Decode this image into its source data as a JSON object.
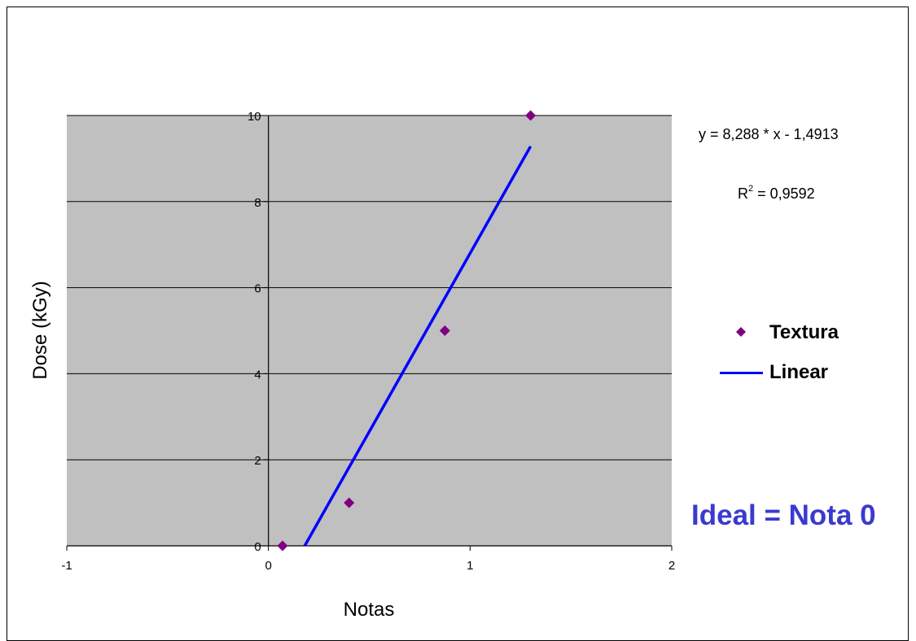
{
  "chart_data": {
    "type": "scatter",
    "title": "",
    "xlabel": "Notas",
    "ylabel": "Dose (kGy)",
    "xlim": [
      -1,
      2
    ],
    "ylim": [
      0,
      10
    ],
    "x_ticks": [
      -1,
      0,
      1,
      2
    ],
    "y_ticks": [
      0,
      2,
      4,
      6,
      8,
      10
    ],
    "grid": "horizontal",
    "plot_background": "#c0c0c0",
    "series": [
      {
        "name": "Textura",
        "marker": "diamond",
        "color": "#800080",
        "points": [
          {
            "x": 0.07,
            "y": 0
          },
          {
            "x": 0.4,
            "y": 1
          },
          {
            "x": 0.875,
            "y": 5
          },
          {
            "x": 1.3,
            "y": 10
          }
        ]
      },
      {
        "name": "Linear",
        "type": "line",
        "color": "#0000ff",
        "slope": 8.288,
        "intercept": -1.4913,
        "x_range": [
          0.18,
          1.3
        ]
      }
    ],
    "legend": {
      "position": "right",
      "entries": [
        "Textura",
        "Linear"
      ]
    },
    "annotations": {
      "equation": "y = 8,288 * x - 1,4913",
      "r2_prefix": "R",
      "r2_sup": "2",
      "r2_value": " = 0,9592",
      "ideal": "Ideal = Nota 0"
    }
  }
}
